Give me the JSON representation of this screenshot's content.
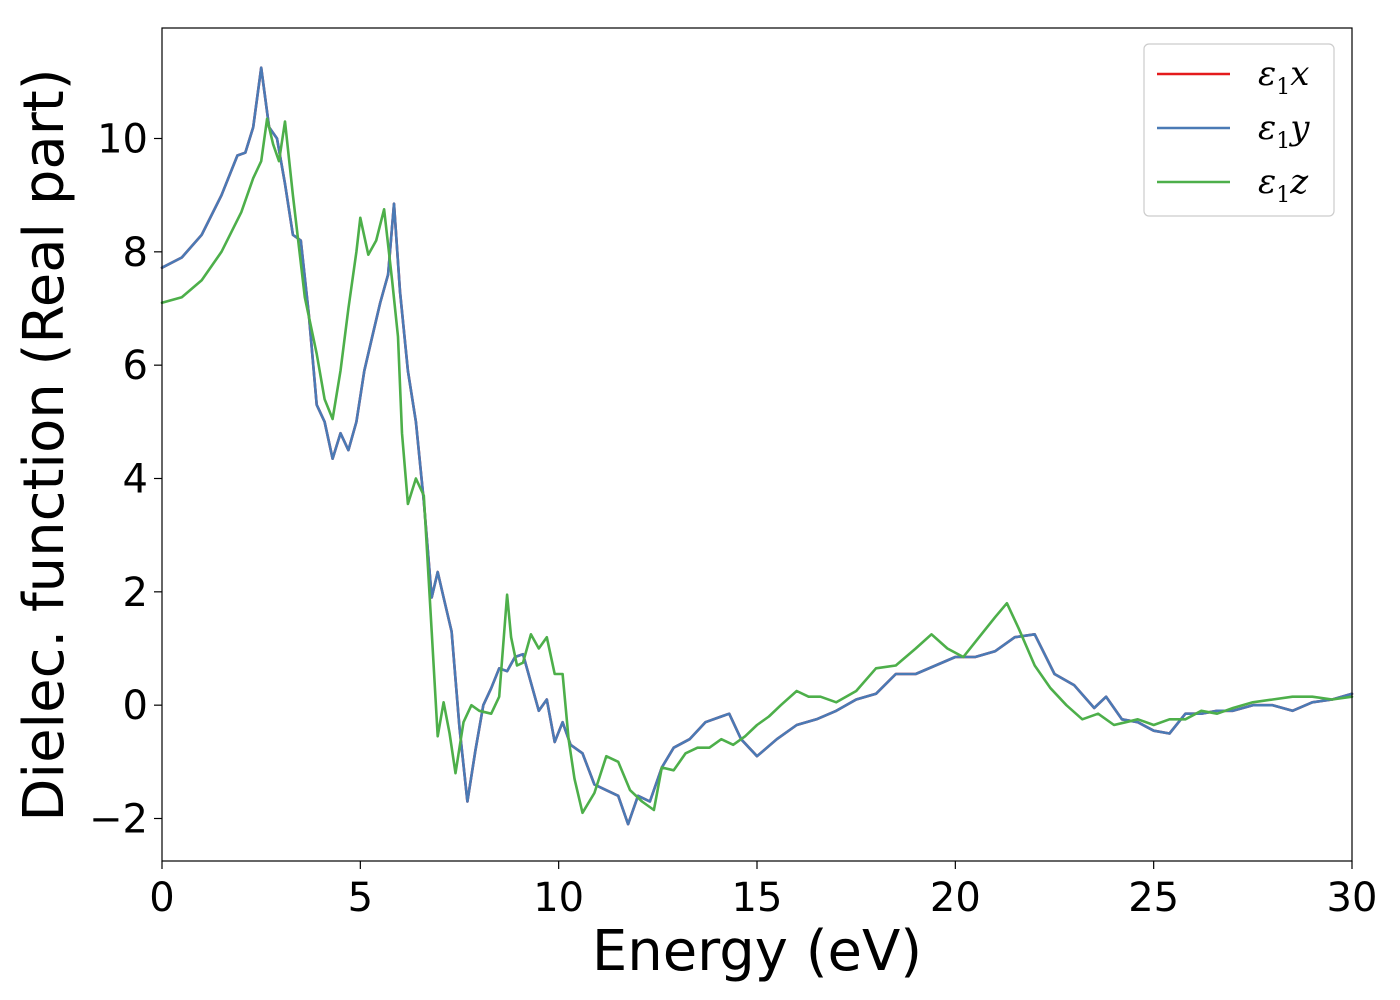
{
  "chart_data": {
    "type": "line",
    "xlabel": "Energy (eV)",
    "ylabel": "Dielec. function (Real part)",
    "xlim": [
      0,
      30
    ],
    "ylim": [
      -2.75,
      11.95
    ],
    "xticks": [
      0,
      5,
      10,
      15,
      20,
      25,
      30
    ],
    "xtick_labels": [
      "0",
      "5",
      "10",
      "15",
      "20",
      "25",
      "30"
    ],
    "yticks": [
      -2,
      0,
      2,
      4,
      6,
      8,
      10
    ],
    "ytick_labels": [
      "−2",
      "0",
      "2",
      "4",
      "6",
      "8",
      "10"
    ],
    "grid": false,
    "legend_position": "top-right",
    "series": [
      {
        "name": "ε₁x",
        "legend_base": "ε",
        "legend_sub": "1",
        "legend_var": "x",
        "color": "#e41a1c",
        "x": [
          0,
          0.5,
          1.0,
          1.5,
          1.9,
          2.1,
          2.3,
          2.5,
          2.7,
          2.9,
          3.1,
          3.3,
          3.5,
          3.7,
          3.9,
          4.1,
          4.3,
          4.5,
          4.7,
          4.9,
          5.1,
          5.3,
          5.5,
          5.7,
          5.85,
          6.0,
          6.2,
          6.4,
          6.6,
          6.8,
          6.95,
          7.1,
          7.3,
          7.5,
          7.7,
          7.9,
          8.1,
          8.3,
          8.5,
          8.7,
          8.9,
          9.1,
          9.3,
          9.5,
          9.7,
          9.9,
          10.1,
          10.3,
          10.6,
          10.9,
          11.2,
          11.5,
          11.75,
          12.0,
          12.3,
          12.6,
          12.9,
          13.3,
          13.7,
          14.1,
          14.3,
          14.6,
          15.0,
          15.5,
          16.0,
          16.5,
          17.0,
          17.5,
          18.0,
          18.5,
          19.0,
          19.5,
          20.0,
          20.5,
          21.0,
          21.5,
          22.0,
          22.5,
          23.0,
          23.5,
          23.8,
          24.2,
          24.6,
          25.0,
          25.4,
          25.8,
          26.2,
          26.6,
          27.0,
          27.5,
          28.0,
          28.5,
          29.0,
          29.5,
          30.0
        ],
        "y": [
          7.72,
          7.9,
          8.3,
          9.0,
          9.7,
          9.75,
          10.2,
          11.25,
          10.2,
          10.0,
          9.2,
          8.3,
          8.2,
          6.9,
          5.3,
          5.0,
          4.35,
          4.8,
          4.5,
          5.0,
          5.9,
          6.5,
          7.1,
          7.6,
          8.85,
          7.3,
          5.9,
          5.0,
          3.6,
          1.9,
          2.35,
          1.9,
          1.3,
          -0.4,
          -1.7,
          -0.8,
          0.0,
          0.3,
          0.65,
          0.6,
          0.85,
          0.9,
          0.4,
          -0.1,
          0.1,
          -0.65,
          -0.3,
          -0.7,
          -0.85,
          -1.4,
          -1.5,
          -1.6,
          -2.1,
          -1.6,
          -1.7,
          -1.1,
          -0.75,
          -0.6,
          -0.3,
          -0.2,
          -0.15,
          -0.6,
          -0.9,
          -0.6,
          -0.35,
          -0.25,
          -0.1,
          0.1,
          0.2,
          0.55,
          0.55,
          0.7,
          0.85,
          0.85,
          0.95,
          1.2,
          1.25,
          0.55,
          0.35,
          -0.05,
          0.15,
          -0.25,
          -0.3,
          -0.45,
          -0.5,
          -0.15,
          -0.15,
          -0.1,
          -0.1,
          0.0,
          0.0,
          -0.1,
          0.05,
          0.1,
          0.2
        ]
      },
      {
        "name": "ε₁y",
        "legend_base": "ε",
        "legend_sub": "1",
        "legend_var": "y",
        "color": "#4a7ab5",
        "x": [
          0,
          0.5,
          1.0,
          1.5,
          1.9,
          2.1,
          2.3,
          2.5,
          2.7,
          2.9,
          3.1,
          3.3,
          3.5,
          3.7,
          3.9,
          4.1,
          4.3,
          4.5,
          4.7,
          4.9,
          5.1,
          5.3,
          5.5,
          5.7,
          5.85,
          6.0,
          6.2,
          6.4,
          6.6,
          6.8,
          6.95,
          7.1,
          7.3,
          7.5,
          7.7,
          7.9,
          8.1,
          8.3,
          8.5,
          8.7,
          8.9,
          9.1,
          9.3,
          9.5,
          9.7,
          9.9,
          10.1,
          10.3,
          10.6,
          10.9,
          11.2,
          11.5,
          11.75,
          12.0,
          12.3,
          12.6,
          12.9,
          13.3,
          13.7,
          14.1,
          14.3,
          14.6,
          15.0,
          15.5,
          16.0,
          16.5,
          17.0,
          17.5,
          18.0,
          18.5,
          19.0,
          19.5,
          20.0,
          20.5,
          21.0,
          21.5,
          22.0,
          22.5,
          23.0,
          23.5,
          23.8,
          24.2,
          24.6,
          25.0,
          25.4,
          25.8,
          26.2,
          26.6,
          27.0,
          27.5,
          28.0,
          28.5,
          29.0,
          29.5,
          30.0
        ],
        "y": [
          7.72,
          7.9,
          8.3,
          9.0,
          9.7,
          9.75,
          10.2,
          11.25,
          10.2,
          10.0,
          9.2,
          8.3,
          8.2,
          6.9,
          5.3,
          5.0,
          4.35,
          4.8,
          4.5,
          5.0,
          5.9,
          6.5,
          7.1,
          7.6,
          8.85,
          7.3,
          5.9,
          5.0,
          3.6,
          1.9,
          2.35,
          1.9,
          1.3,
          -0.4,
          -1.7,
          -0.8,
          0.0,
          0.3,
          0.65,
          0.6,
          0.85,
          0.9,
          0.4,
          -0.1,
          0.1,
          -0.65,
          -0.3,
          -0.7,
          -0.85,
          -1.4,
          -1.5,
          -1.6,
          -2.1,
          -1.6,
          -1.7,
          -1.1,
          -0.75,
          -0.6,
          -0.3,
          -0.2,
          -0.15,
          -0.6,
          -0.9,
          -0.6,
          -0.35,
          -0.25,
          -0.1,
          0.1,
          0.2,
          0.55,
          0.55,
          0.7,
          0.85,
          0.85,
          0.95,
          1.2,
          1.25,
          0.55,
          0.35,
          -0.05,
          0.15,
          -0.25,
          -0.3,
          -0.45,
          -0.5,
          -0.15,
          -0.15,
          -0.1,
          -0.1,
          0.0,
          0.0,
          -0.1,
          0.05,
          0.1,
          0.2
        ]
      },
      {
        "name": "ε₁z",
        "legend_base": "ε",
        "legend_sub": "1",
        "legend_var": "z",
        "color": "#4daf4a",
        "x": [
          0,
          0.5,
          1.0,
          1.5,
          2.0,
          2.3,
          2.5,
          2.65,
          2.8,
          2.95,
          3.1,
          3.3,
          3.6,
          3.9,
          4.1,
          4.3,
          4.5,
          4.7,
          4.9,
          5.0,
          5.2,
          5.4,
          5.6,
          5.8,
          5.95,
          6.05,
          6.2,
          6.4,
          6.6,
          6.8,
          6.95,
          7.1,
          7.25,
          7.4,
          7.6,
          7.8,
          8.0,
          8.3,
          8.5,
          8.7,
          8.8,
          8.95,
          9.1,
          9.3,
          9.5,
          9.7,
          9.9,
          10.1,
          10.25,
          10.4,
          10.6,
          10.9,
          11.2,
          11.5,
          11.8,
          12.1,
          12.4,
          12.6,
          12.9,
          13.2,
          13.5,
          13.8,
          14.1,
          14.4,
          14.7,
          15.0,
          15.3,
          15.6,
          16.0,
          16.3,
          16.6,
          17.0,
          17.5,
          18.0,
          18.5,
          19.0,
          19.4,
          19.8,
          20.2,
          20.6,
          21.0,
          21.3,
          21.6,
          22.0,
          22.4,
          22.8,
          23.2,
          23.6,
          24.0,
          24.3,
          24.6,
          25.0,
          25.4,
          25.8,
          26.2,
          26.6,
          27.0,
          27.5,
          28.0,
          28.5,
          29.0,
          29.5,
          30.0
        ],
        "y": [
          7.1,
          7.2,
          7.5,
          8.0,
          8.7,
          9.3,
          9.6,
          10.35,
          9.9,
          9.6,
          10.3,
          9.0,
          7.2,
          6.2,
          5.4,
          5.05,
          5.9,
          7.0,
          8.0,
          8.6,
          7.95,
          8.2,
          8.75,
          7.5,
          6.5,
          4.8,
          3.55,
          4.0,
          3.7,
          1.3,
          -0.55,
          0.05,
          -0.5,
          -1.2,
          -0.3,
          0.0,
          -0.1,
          -0.15,
          0.15,
          1.95,
          1.2,
          0.7,
          0.75,
          1.25,
          1.0,
          1.2,
          0.55,
          0.55,
          -0.6,
          -1.3,
          -1.9,
          -1.55,
          -0.9,
          -1.0,
          -1.5,
          -1.7,
          -1.85,
          -1.1,
          -1.15,
          -0.85,
          -0.75,
          -0.75,
          -0.6,
          -0.7,
          -0.55,
          -0.35,
          -0.2,
          0.0,
          0.25,
          0.15,
          0.15,
          0.05,
          0.25,
          0.65,
          0.7,
          1.0,
          1.25,
          1.0,
          0.85,
          1.2,
          1.55,
          1.8,
          1.35,
          0.7,
          0.3,
          0.0,
          -0.25,
          -0.15,
          -0.35,
          -0.3,
          -0.25,
          -0.35,
          -0.25,
          -0.25,
          -0.1,
          -0.15,
          -0.05,
          0.05,
          0.1,
          0.15,
          0.15,
          0.1,
          0.15
        ]
      }
    ]
  }
}
